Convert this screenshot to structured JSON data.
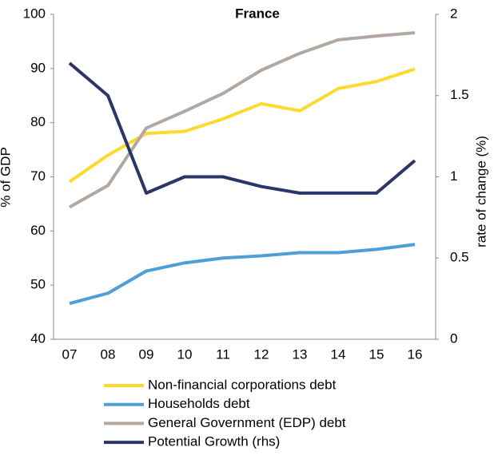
{
  "chart_data": {
    "type": "line",
    "title": "France",
    "y_label": "% of GDP",
    "y2_label": "rate of change (%)",
    "categories": [
      "07",
      "08",
      "09",
      "10",
      "11",
      "12",
      "13",
      "14",
      "15",
      "16"
    ],
    "ylim": [
      40,
      100
    ],
    "yticks": [
      40,
      50,
      60,
      70,
      80,
      90,
      100
    ],
    "y2lim": [
      0,
      2
    ],
    "y2ticks": [
      0,
      0.5,
      1,
      1.5,
      2
    ],
    "grid": false,
    "series": [
      {
        "name": "Non-financial corporations debt",
        "color": "#FFD92F",
        "values": [
          69.1,
          74,
          78,
          78.4,
          80.7,
          83.5,
          82.2,
          86.3,
          87.6,
          89.9
        ]
      },
      {
        "name": "Households debt",
        "color": "#4E9FD8",
        "values": [
          46.6,
          48.5,
          52.6,
          54.1,
          55,
          55.4,
          56,
          56,
          56.6,
          57.5
        ]
      },
      {
        "name": "General Government (EDP) debt",
        "color": "#B3A7A2",
        "values": [
          64.4,
          68.4,
          79,
          82.1,
          85.4,
          89.7,
          92.8,
          95.3,
          96,
          96.6
        ]
      },
      {
        "name": "Potential Growth (rhs)",
        "color": "#2B3569",
        "axis": "y2",
        "values": [
          1.7,
          1.5,
          0.9,
          1.0,
          1.0,
          0.94,
          0.9,
          0.9,
          0.9,
          1.1
        ]
      }
    ]
  }
}
